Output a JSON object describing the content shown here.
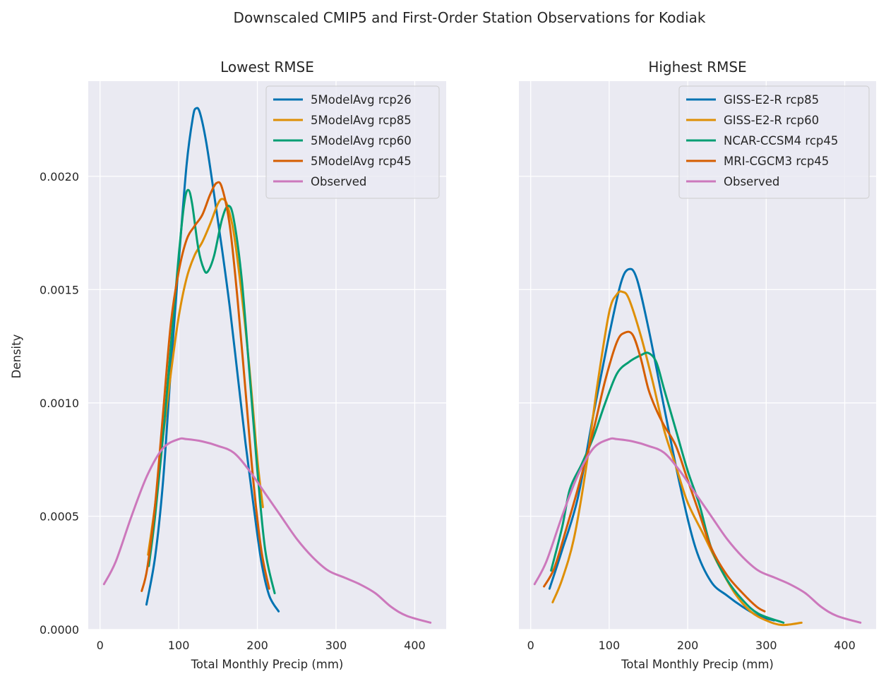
{
  "suptitle": "Downscaled CMIP5 and First-Order Station Observations for Kodiak",
  "ylabel": "Density",
  "chart_data": [
    {
      "type": "line",
      "title": "Lowest RMSE",
      "xlabel": "Total Monthly Precip (mm)",
      "ylabel": "Density",
      "xlim": [
        -15,
        440
      ],
      "ylim": [
        0,
        0.00242
      ],
      "xticks": [
        0,
        100,
        200,
        300,
        400
      ],
      "xtick_labels": [
        "0",
        "100",
        "200",
        "300",
        "400"
      ],
      "yticks": [
        0,
        0.0005,
        0.001,
        0.0015,
        0.002
      ],
      "ytick_labels": [
        "0.0000",
        "0.0005",
        "0.0010",
        "0.0015",
        "0.0020"
      ],
      "grid": true,
      "legend_position": "upper right",
      "series": [
        {
          "name": "5ModelAvg rcp26",
          "color": "#0173b2",
          "points": [
            [
              59,
              0.00011
            ],
            [
              70,
              0.00032
            ],
            [
              80,
              0.00065
            ],
            [
              90,
              0.00115
            ],
            [
              100,
              0.00162
            ],
            [
              110,
              0.00205
            ],
            [
              118,
              0.00226
            ],
            [
              122,
              0.0023
            ],
            [
              127,
              0.00228
            ],
            [
              135,
              0.00215
            ],
            [
              145,
              0.00192
            ],
            [
              155,
              0.00168
            ],
            [
              165,
              0.00142
            ],
            [
              175,
              0.00112
            ],
            [
              185,
              0.00082
            ],
            [
              195,
              0.00055
            ],
            [
              205,
              0.0003
            ],
            [
              215,
              0.00015
            ],
            [
              227,
              8e-05
            ]
          ]
        },
        {
          "name": "5ModelAvg rcp85",
          "color": "#de8f05",
          "points": [
            [
              61,
              0.00033
            ],
            [
              70,
              0.00055
            ],
            [
              80,
              0.00085
            ],
            [
              90,
              0.00113
            ],
            [
              100,
              0.00138
            ],
            [
              110,
              0.00155
            ],
            [
              120,
              0.00165
            ],
            [
              130,
              0.00171
            ],
            [
              140,
              0.00179
            ],
            [
              150,
              0.00188
            ],
            [
              156,
              0.0019
            ],
            [
              162,
              0.00187
            ],
            [
              170,
              0.00175
            ],
            [
              180,
              0.00148
            ],
            [
              190,
              0.00115
            ],
            [
              200,
              0.00075
            ],
            [
              207,
              0.00054
            ]
          ]
        },
        {
          "name": "5ModelAvg rcp60",
          "color": "#029e73",
          "points": [
            [
              62,
              0.00028
            ],
            [
              70,
              0.0005
            ],
            [
              80,
              0.00085
            ],
            [
              90,
              0.00125
            ],
            [
              100,
              0.00165
            ],
            [
              107,
              0.00188
            ],
            [
              112,
              0.00194
            ],
            [
              117,
              0.00188
            ],
            [
              125,
              0.00168
            ],
            [
              132,
              0.00159
            ],
            [
              137,
              0.00158
            ],
            [
              145,
              0.00165
            ],
            [
              155,
              0.00181
            ],
            [
              163,
              0.00187
            ],
            [
              170,
              0.00181
            ],
            [
              180,
              0.00155
            ],
            [
              190,
              0.00113
            ],
            [
              200,
              0.0007
            ],
            [
              210,
              0.00035
            ],
            [
              222,
              0.00016
            ]
          ]
        },
        {
          "name": "5ModelAvg rcp45",
          "color": "#d55e00",
          "points": [
            [
              53,
              0.00017
            ],
            [
              60,
              0.00027
            ],
            [
              70,
              0.00055
            ],
            [
              80,
              0.00095
            ],
            [
              90,
              0.00135
            ],
            [
              100,
              0.00158
            ],
            [
              110,
              0.00172
            ],
            [
              120,
              0.00178
            ],
            [
              130,
              0.00183
            ],
            [
              140,
              0.00192
            ],
            [
              148,
              0.00197
            ],
            [
              155,
              0.00195
            ],
            [
              165,
              0.00178
            ],
            [
              175,
              0.00145
            ],
            [
              185,
              0.00105
            ],
            [
              195,
              0.00065
            ],
            [
              205,
              0.00035
            ],
            [
              215,
              0.00018
            ]
          ]
        },
        {
          "name": "Observed",
          "color": "#cc78bc",
          "points": [
            [
              5,
              0.0002
            ],
            [
              20,
              0.0003
            ],
            [
              40,
              0.0005
            ],
            [
              60,
              0.00068
            ],
            [
              80,
              0.0008
            ],
            [
              100,
              0.00084
            ],
            [
              110,
              0.00084
            ],
            [
              130,
              0.00083
            ],
            [
              150,
              0.00081
            ],
            [
              170,
              0.00078
            ],
            [
              190,
              0.0007
            ],
            [
              210,
              0.0006
            ],
            [
              230,
              0.0005
            ],
            [
              250,
              0.0004
            ],
            [
              270,
              0.00032
            ],
            [
              290,
              0.00026
            ],
            [
              310,
              0.00023
            ],
            [
              330,
              0.0002
            ],
            [
              350,
              0.00016
            ],
            [
              370,
              0.0001
            ],
            [
              390,
              6e-05
            ],
            [
              420,
              3e-05
            ]
          ]
        }
      ]
    },
    {
      "type": "line",
      "title": "Highest RMSE",
      "xlabel": "Total Monthly Precip (mm)",
      "ylabel": "",
      "xlim": [
        -15,
        440
      ],
      "ylim": [
        0,
        0.00242
      ],
      "xticks": [
        0,
        100,
        200,
        300,
        400
      ],
      "xtick_labels": [
        "0",
        "100",
        "200",
        "300",
        "400"
      ],
      "yticks": [
        0,
        0.0005,
        0.001,
        0.0015,
        0.002
      ],
      "grid": true,
      "legend_position": "upper right",
      "series": [
        {
          "name": "GISS-E2-R rcp85",
          "color": "#0173b2",
          "points": [
            [
              24,
              0.00018
            ],
            [
              40,
              0.00035
            ],
            [
              60,
              0.00058
            ],
            [
              80,
              0.00095
            ],
            [
              100,
              0.0013
            ],
            [
              115,
              0.00153
            ],
            [
              125,
              0.00159
            ],
            [
              135,
              0.00155
            ],
            [
              150,
              0.00133
            ],
            [
              170,
              0.00098
            ],
            [
              190,
              0.00064
            ],
            [
              210,
              0.00036
            ],
            [
              230,
              0.00021
            ],
            [
              250,
              0.00015
            ],
            [
              270,
              0.0001
            ],
            [
              290,
              6e-05
            ],
            [
              310,
              4e-05
            ]
          ]
        },
        {
          "name": "GISS-E2-R rcp60",
          "color": "#de8f05",
          "points": [
            [
              28,
              0.00012
            ],
            [
              40,
              0.00022
            ],
            [
              55,
              0.0004
            ],
            [
              70,
              0.0007
            ],
            [
              85,
              0.00108
            ],
            [
              100,
              0.0014
            ],
            [
              110,
              0.00148
            ],
            [
              117,
              0.00149
            ],
            [
              125,
              0.00146
            ],
            [
              140,
              0.0013
            ],
            [
              155,
              0.0011
            ],
            [
              170,
              0.00088
            ],
            [
              185,
              0.00072
            ],
            [
              200,
              0.00056
            ],
            [
              220,
              0.00042
            ],
            [
              240,
              0.00028
            ],
            [
              260,
              0.00016
            ],
            [
              280,
              8e-05
            ],
            [
              300,
              4e-05
            ],
            [
              320,
              2e-05
            ],
            [
              345,
              3e-05
            ]
          ]
        },
        {
          "name": "NCAR-CCSM4 rcp45",
          "color": "#029e73",
          "points": [
            [
              26,
              0.00026
            ],
            [
              40,
              0.00045
            ],
            [
              50,
              0.00062
            ],
            [
              65,
              0.00073
            ],
            [
              80,
              0.00085
            ],
            [
              95,
              0.001
            ],
            [
              110,
              0.00113
            ],
            [
              125,
              0.00118
            ],
            [
              140,
              0.00121
            ],
            [
              150,
              0.00122
            ],
            [
              160,
              0.00118
            ],
            [
              170,
              0.00106
            ],
            [
              185,
              0.00088
            ],
            [
              200,
              0.0007
            ],
            [
              215,
              0.00055
            ],
            [
              230,
              0.00036
            ],
            [
              250,
              0.00022
            ],
            [
              270,
              0.00013
            ],
            [
              290,
              7e-05
            ],
            [
              322,
              3e-05
            ]
          ]
        },
        {
          "name": "MRI-CGCM3 rcp45",
          "color": "#d55e00",
          "points": [
            [
              17,
              0.00019
            ],
            [
              30,
              0.00027
            ],
            [
              45,
              0.00044
            ],
            [
              60,
              0.00062
            ],
            [
              80,
              0.00088
            ],
            [
              95,
              0.0011
            ],
            [
              110,
              0.00127
            ],
            [
              120,
              0.00131
            ],
            [
              130,
              0.0013
            ],
            [
              140,
              0.0012
            ],
            [
              150,
              0.00106
            ],
            [
              160,
              0.00097
            ],
            [
              170,
              0.0009
            ],
            [
              185,
              0.00081
            ],
            [
              200,
              0.00066
            ],
            [
              215,
              0.00051
            ],
            [
              230,
              0.00036
            ],
            [
              250,
              0.00024
            ],
            [
              270,
              0.00016
            ],
            [
              288,
              0.0001
            ],
            [
              298,
              8e-05
            ]
          ]
        },
        {
          "name": "Observed",
          "color": "#cc78bc",
          "points": [
            [
              5,
              0.0002
            ],
            [
              20,
              0.0003
            ],
            [
              40,
              0.0005
            ],
            [
              60,
              0.00068
            ],
            [
              80,
              0.0008
            ],
            [
              100,
              0.00084
            ],
            [
              110,
              0.00084
            ],
            [
              130,
              0.00083
            ],
            [
              150,
              0.00081
            ],
            [
              170,
              0.00078
            ],
            [
              190,
              0.0007
            ],
            [
              210,
              0.0006
            ],
            [
              230,
              0.0005
            ],
            [
              250,
              0.0004
            ],
            [
              270,
              0.00032
            ],
            [
              290,
              0.00026
            ],
            [
              310,
              0.00023
            ],
            [
              330,
              0.0002
            ],
            [
              350,
              0.00016
            ],
            [
              370,
              0.0001
            ],
            [
              390,
              6e-05
            ],
            [
              420,
              3e-05
            ]
          ]
        }
      ]
    }
  ]
}
